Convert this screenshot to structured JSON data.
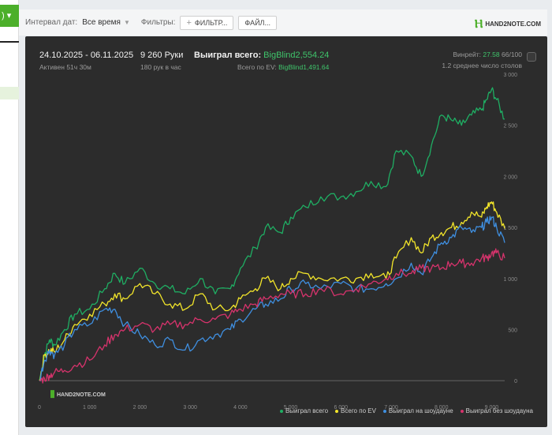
{
  "sidebar": {
    "tab_label": ") ▾"
  },
  "toolbar": {
    "date_interval_label": "Интервал дат:",
    "date_interval_value": "Все время",
    "filters_label": "Фильтры:",
    "filter_button": "ФИЛЬТР...",
    "file_button": "ФАЙЛ...",
    "logo_text": "HAND2NOTE.COM"
  },
  "summary": {
    "date_range": "24.10.2025 - 06.11.2025",
    "active_time": "Активен 51ч 30м",
    "hands": "9 260 Руки",
    "hands_per_hour": "180 рук в час",
    "won_label": "Выиграл всего:",
    "won_value": "BigBlind2,554.24",
    "ev_label": "Всего по EV:",
    "ev_value": "BigBlind1,491.64",
    "winrate_label": "Винрейт:",
    "winrate_value": "27.58",
    "winrate_unit": "66/100",
    "avg_tables": "1.2 среднее число столов"
  },
  "watermark": "HAND2NOTE.COM",
  "colors": {
    "won": "#1fae63",
    "ev": "#f2e52a",
    "showdown": "#3f8fe0",
    "nonshowdown": "#d6336c",
    "accent": "#4caf2a"
  },
  "chart_data": {
    "type": "line",
    "xlim": [
      0,
      9260
    ],
    "ylim": [
      -200,
      3000
    ],
    "x_ticks": [
      "0",
      "1 000",
      "2 000",
      "3 000",
      "4 000",
      "5 000",
      "6 000",
      "7 000",
      "8 000",
      "9 000"
    ],
    "x_tick_values": [
      0,
      1000,
      2000,
      3000,
      4000,
      5000,
      6000,
      7000,
      8000,
      9000
    ],
    "y_ticks": [
      "0",
      "500",
      "1 000",
      "1 500",
      "2 000",
      "2 500",
      "3 000"
    ],
    "y_tick_values": [
      0,
      500,
      1000,
      1500,
      2000,
      2500,
      3000
    ],
    "x": [
      0,
      100,
      200,
      300,
      500,
      700,
      1000,
      1300,
      1500,
      1700,
      2000,
      2300,
      2600,
      2900,
      3200,
      3500,
      3800,
      4000,
      4300,
      4500,
      4800,
      5000,
      5300,
      5600,
      6000,
      6300,
      6600,
      6900,
      7100,
      7400,
      7600,
      7800,
      8000,
      8200,
      8400,
      8600,
      8800,
      8900,
      9000,
      9100,
      9260
    ],
    "series": [
      {
        "name": "Выиграл всего",
        "color": "#1fae63",
        "values": [
          0,
          250,
          400,
          350,
          500,
          650,
          700,
          900,
          1050,
          950,
          1100,
          950,
          900,
          850,
          1000,
          850,
          900,
          1100,
          1300,
          1500,
          1450,
          1600,
          1700,
          1800,
          1800,
          1850,
          1950,
          1900,
          2250,
          2200,
          2000,
          2300,
          2600,
          2550,
          2500,
          2600,
          2650,
          2750,
          2850,
          2750,
          2560
        ]
      },
      {
        "name": "Всего по EV",
        "color": "#f2e52a",
        "values": [
          0,
          250,
          300,
          280,
          400,
          550,
          650,
          750,
          850,
          800,
          950,
          850,
          750,
          700,
          850,
          700,
          700,
          800,
          900,
          1000,
          900,
          1000,
          1050,
          1000,
          1000,
          1000,
          1050,
          1000,
          1200,
          1400,
          1250,
          1400,
          1450,
          1500,
          1550,
          1650,
          1600,
          1700,
          1750,
          1650,
          1490
        ]
      },
      {
        "name": "Выиграл на шоудауне",
        "color": "#3f8fe0",
        "values": [
          0,
          200,
          300,
          250,
          350,
          500,
          550,
          700,
          700,
          550,
          450,
          350,
          400,
          300,
          400,
          450,
          500,
          600,
          700,
          750,
          800,
          900,
          950,
          900,
          950,
          900,
          900,
          950,
          1000,
          1150,
          1050,
          1200,
          1350,
          1400,
          1500,
          1450,
          1500,
          1550,
          1600,
          1500,
          1350
        ]
      },
      {
        "name": "Выиграл без шоудауна",
        "color": "#d6336c",
        "values": [
          0,
          20,
          50,
          80,
          100,
          150,
          200,
          350,
          450,
          500,
          550,
          500,
          550,
          550,
          600,
          600,
          650,
          700,
          750,
          800,
          850,
          850,
          850,
          900,
          850,
          900,
          950,
          1000,
          1050,
          1050,
          1100,
          1100,
          1100,
          1150,
          1150,
          1150,
          1200,
          1200,
          1250,
          1250,
          1200
        ]
      }
    ]
  }
}
